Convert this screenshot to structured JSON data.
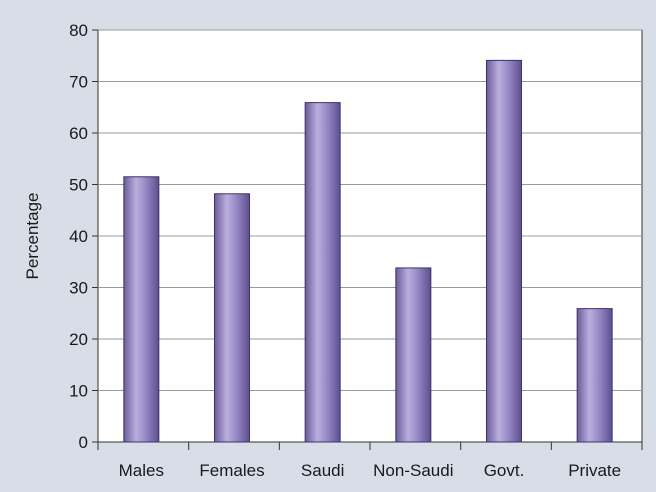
{
  "chart_data": {
    "type": "bar",
    "categories": [
      "Males",
      "Females",
      "Saudi",
      "Non-Saudi",
      "Govt.",
      "Private"
    ],
    "values": [
      51.5,
      48.2,
      65.9,
      33.8,
      74.1,
      25.9
    ],
    "title": "",
    "xlabel": "",
    "ylabel": "Percentage",
    "ylim": [
      0,
      80
    ],
    "yticks": [
      0,
      10,
      20,
      30,
      40,
      50,
      60,
      70,
      80
    ],
    "grid": true,
    "legend": "none"
  },
  "colors": {
    "background": "#d8dee8",
    "plot_background": "#ffffff",
    "bar_dark": "#6a5a9a",
    "bar_light": "#b8aedb",
    "grid": "#999999"
  }
}
